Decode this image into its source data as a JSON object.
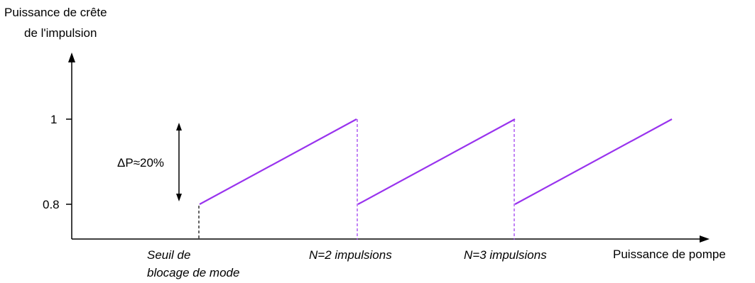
{
  "chart_data": {
    "type": "line",
    "ylabel": [
      "Puissance de crête",
      "de l'impulsion"
    ],
    "xlabel": "Puissance de pompe",
    "y_ticks": [
      "1",
      "0.8"
    ],
    "ylim": [
      0.8,
      1
    ],
    "annotation": "ΔP≈20%",
    "thresholds": [
      {
        "label": [
          "Seuil de",
          "blocage de mode"
        ],
        "style": "black-dashed"
      },
      {
        "label": [
          "N=2 impulsions"
        ],
        "style": "purple-dashed"
      },
      {
        "label": [
          "N=3 impulsions"
        ],
        "style": "purple-dashed"
      }
    ],
    "segments": [
      {
        "from": 0.8,
        "to": 1
      },
      {
        "from": 0.8,
        "to": 1
      },
      {
        "from": 0.8,
        "to": 1
      }
    ],
    "colors": {
      "series": "#9933ee",
      "axes": "#000000"
    }
  }
}
